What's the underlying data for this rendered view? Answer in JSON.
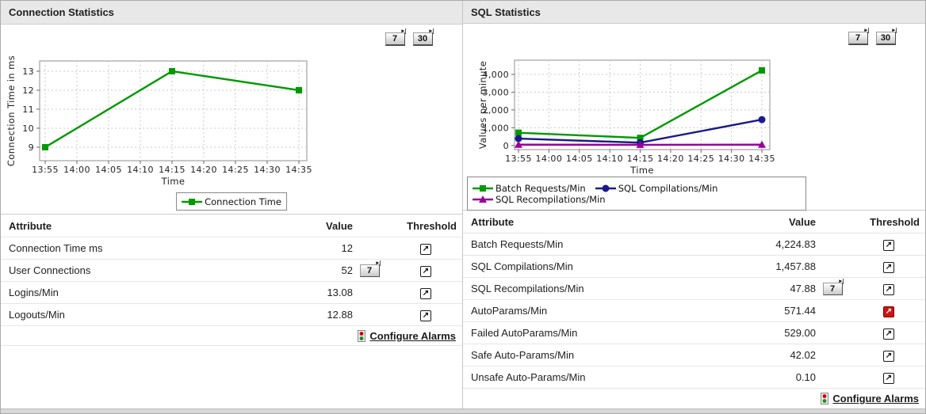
{
  "icons": {
    "threshold_glyph": "↗",
    "range_arrow_glyph": "▸"
  },
  "panels": [
    {
      "title": "Connection Statistics",
      "range_buttons": [
        {
          "label": "7"
        },
        {
          "label": "30"
        }
      ],
      "table": {
        "headers": {
          "attribute": "Attribute",
          "value": "Value",
          "threshold": "Threshold"
        },
        "rows": [
          {
            "attribute": "Connection Time ms",
            "value": "12"
          },
          {
            "attribute": "User Connections",
            "value": "52",
            "history_button": "7"
          },
          {
            "attribute": "Logins/Min",
            "value": "13.08"
          },
          {
            "attribute": "Logouts/Min",
            "value": "12.88"
          }
        ]
      },
      "configure_alarms": "Configure Alarms"
    },
    {
      "title": "SQL Statistics",
      "range_buttons": [
        {
          "label": "7"
        },
        {
          "label": "30"
        }
      ],
      "table": {
        "headers": {
          "attribute": "Attribute",
          "value": "Value",
          "threshold": "Threshold"
        },
        "rows": [
          {
            "attribute": "Batch Requests/Min",
            "value": "4,224.83"
          },
          {
            "attribute": "SQL Compilations/Min",
            "value": "1,457.88"
          },
          {
            "attribute": "SQL Recompilations/Min",
            "value": "47.88",
            "history_button": "7"
          },
          {
            "attribute": "AutoParams/Min",
            "value": "571.44",
            "threshold_alert": true
          },
          {
            "attribute": "Failed AutoParams/Min",
            "value": "529.00"
          },
          {
            "attribute": "Safe Auto-Params/Min",
            "value": "42.02"
          },
          {
            "attribute": "Unsafe Auto-Params/Min",
            "value": "0.10"
          }
        ]
      },
      "configure_alarms": "Configure Alarms"
    }
  ],
  "chart_data": [
    {
      "type": "line",
      "title": "Connection Statistics",
      "xlabel": "Time",
      "ylabel": "Connection Time in ms",
      "x_tick_labels": [
        "13:55",
        "14:00",
        "14:05",
        "14:10",
        "14:15",
        "14:20",
        "14:25",
        "14:30",
        "14:35"
      ],
      "y_ticks": [
        9,
        10,
        11,
        12,
        13
      ],
      "y_tick_labels": [
        "9",
        "10",
        "11",
        "12",
        "13"
      ],
      "ylim": [
        8.29,
        13.54
      ],
      "grid": true,
      "legend_position": "bottom-center",
      "series": [
        {
          "name": "Connection Time",
          "color": "#009900",
          "marker": "square",
          "x_indices": [
            0,
            4,
            8
          ],
          "values": [
            9,
            13,
            12
          ]
        }
      ]
    },
    {
      "type": "line",
      "title": "SQL Statistics",
      "xlabel": "Time",
      "ylabel": "Values per minute",
      "x_tick_labels": [
        "13:55",
        "14:00",
        "14:05",
        "14:10",
        "14:15",
        "14:20",
        "14:25",
        "14:30",
        "14:35"
      ],
      "y_ticks": [
        0,
        1000,
        2000,
        3000,
        4000
      ],
      "y_tick_labels": [
        "0",
        "1,000",
        "2,000",
        "3,000",
        "4,000"
      ],
      "ylim": [
        -230,
        4800
      ],
      "grid": true,
      "legend_position": "bottom-left",
      "series": [
        {
          "name": "Batch Requests/Min",
          "color": "#009900",
          "marker": "square",
          "x_indices": [
            0,
            4,
            8
          ],
          "values": [
            720,
            430,
            4224.83
          ]
        },
        {
          "name": "SQL Compilations/Min",
          "color": "#1a1a8c",
          "marker": "circle",
          "x_indices": [
            0,
            4,
            8
          ],
          "values": [
            390,
            160,
            1457.88
          ]
        },
        {
          "name": "SQL Recompilations/Min",
          "color": "#990099",
          "marker": "triangle",
          "x_indices": [
            0,
            4,
            8
          ],
          "values": [
            48,
            40,
            47.88
          ]
        }
      ]
    }
  ]
}
